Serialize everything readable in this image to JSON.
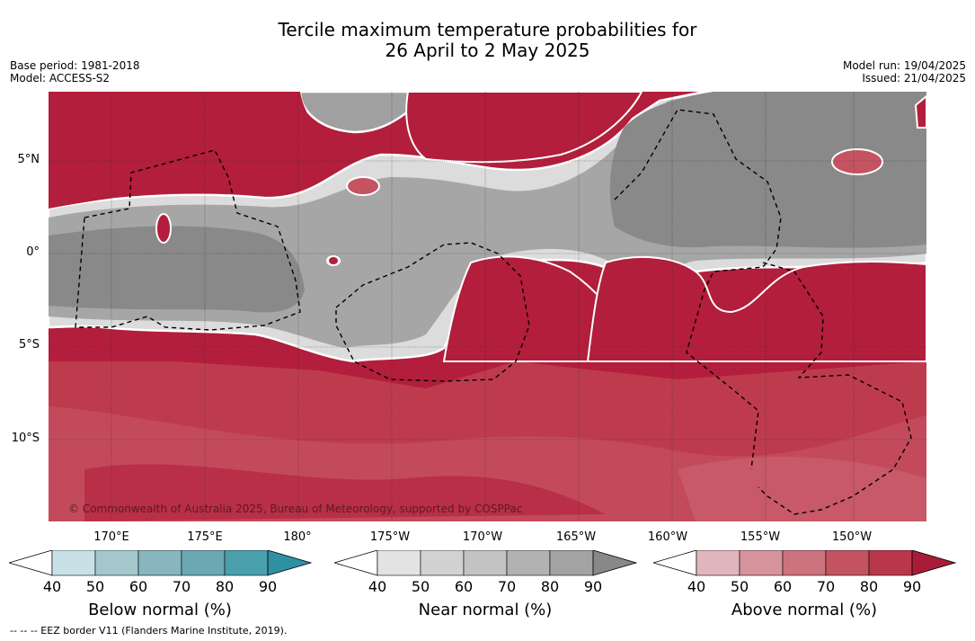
{
  "title_line1": "Tercile maximum temperature probabilities for",
  "title_line2": "26 April to 2 May 2025",
  "meta_left": {
    "base_period": "Base period: 1981-2018",
    "model": "Model: ACCESS-S2"
  },
  "meta_right": {
    "model_run": "Model run: 19/04/2025",
    "issued": "Issued: 21/04/2025"
  },
  "lat_labels": [
    "5°N",
    "0°",
    "5°S",
    "10°S"
  ],
  "lon_labels": [
    "170°E",
    "175°E",
    "180°",
    "175°W",
    "170°W",
    "165°W",
    "160°W",
    "155°W",
    "150°W"
  ],
  "copyright": "© Commonwealth of Australia 2025, Bureau of Meteorology, supported by COSPPac",
  "footnote": "--  --  -- EEZ border V11 (Flanders Marine Institute, 2019).",
  "colorbars": [
    {
      "title": "Below normal (%)",
      "ticks": [
        "40",
        "50",
        "60",
        "70",
        "80",
        "90"
      ],
      "colors": [
        "#ffffff",
        "#c8e1e7",
        "#a4c7cc",
        "#88b5be",
        "#6aa8b4",
        "#4aa0ad",
        "#2f90a2"
      ]
    },
    {
      "title": "Near normal (%)",
      "ticks": [
        "40",
        "50",
        "60",
        "70",
        "80",
        "90"
      ],
      "colors": [
        "#ffffff",
        "#e3e3e3",
        "#d2d2d2",
        "#c3c3c3",
        "#b2b2b2",
        "#a3a3a3",
        "#888888"
      ]
    },
    {
      "title": "Above normal (%)",
      "ticks": [
        "40",
        "50",
        "60",
        "70",
        "80",
        "90"
      ],
      "colors": [
        "#ffffff",
        "#e1b5bc",
        "#d6939b",
        "#cc737e",
        "#c3545f",
        "#b9374a",
        "#a91c37"
      ]
    }
  ],
  "map_colors": {
    "above_high": "#b21e3b",
    "above_mid": "#be3b4e",
    "above_low": "#cc6f7c",
    "above_light": "#d8959e",
    "near_high": "#898989",
    "near_mid": "#a3a3a3",
    "near_low": "#c4c4c4",
    "near_light": "#d9d9d9"
  }
}
